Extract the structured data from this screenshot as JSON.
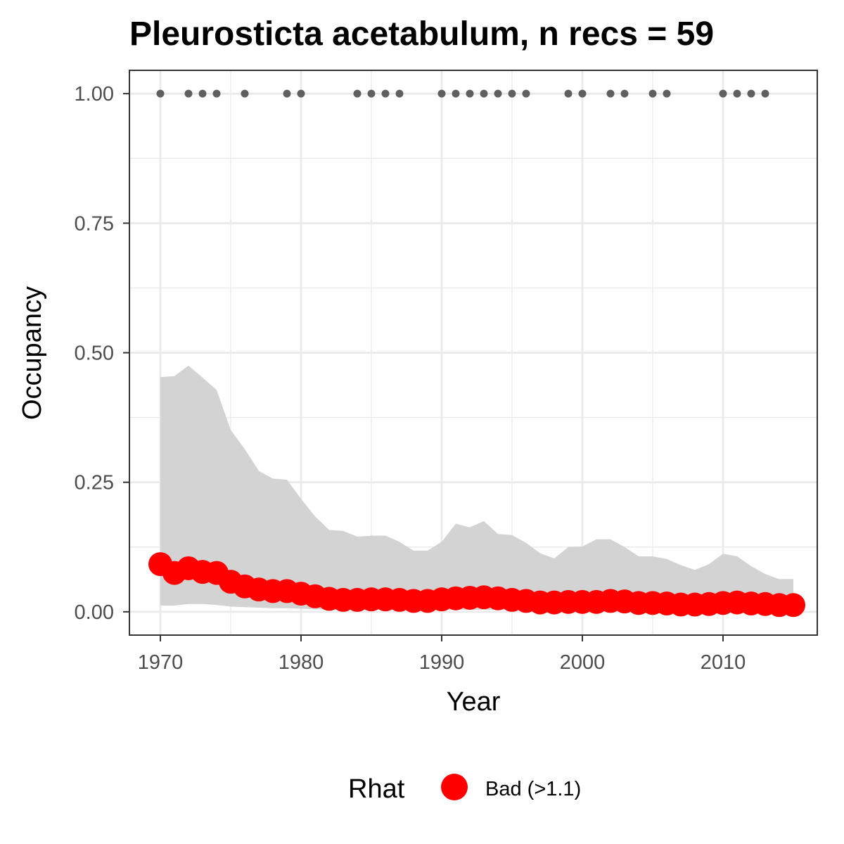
{
  "chart_data": {
    "type": "line",
    "title": "Pleurosticta acetabulum, n recs = 59",
    "xlabel": "Year",
    "ylabel": "Occupancy",
    "xlim": [
      1967.8,
      2016.7
    ],
    "ylim": [
      -0.045,
      1.045
    ],
    "x_ticks": [
      1970,
      1980,
      1990,
      2000,
      2010
    ],
    "x_tick_labels": [
      "1970",
      "1980",
      "1990",
      "2000",
      "2010"
    ],
    "y_ticks": [
      0,
      0.25,
      0.5,
      0.75,
      1.0
    ],
    "y_tick_labels": [
      "0.00",
      "0.25",
      "0.50",
      "0.75",
      "1.00"
    ],
    "grid": true,
    "years": [
      1970,
      1971,
      1972,
      1973,
      1974,
      1975,
      1976,
      1977,
      1978,
      1979,
      1980,
      1981,
      1982,
      1983,
      1984,
      1985,
      1986,
      1987,
      1988,
      1989,
      1990,
      1991,
      1992,
      1993,
      1994,
      1995,
      1996,
      1997,
      1998,
      1999,
      2000,
      2001,
      2002,
      2003,
      2004,
      2005,
      2006,
      2007,
      2008,
      2009,
      2010,
      2011,
      2012,
      2013,
      2014,
      2015
    ],
    "mean": [
      0.092,
      0.075,
      0.084,
      0.077,
      0.075,
      0.058,
      0.049,
      0.043,
      0.04,
      0.04,
      0.035,
      0.03,
      0.025,
      0.023,
      0.023,
      0.024,
      0.024,
      0.023,
      0.021,
      0.021,
      0.024,
      0.026,
      0.027,
      0.028,
      0.026,
      0.023,
      0.021,
      0.018,
      0.018,
      0.019,
      0.019,
      0.019,
      0.021,
      0.02,
      0.017,
      0.017,
      0.016,
      0.014,
      0.014,
      0.015,
      0.017,
      0.018,
      0.016,
      0.015,
      0.013,
      0.013
    ],
    "upper": [
      0.453,
      0.455,
      0.475,
      0.452,
      0.428,
      0.351,
      0.314,
      0.272,
      0.257,
      0.255,
      0.218,
      0.184,
      0.158,
      0.156,
      0.145,
      0.147,
      0.147,
      0.135,
      0.118,
      0.118,
      0.135,
      0.17,
      0.163,
      0.175,
      0.15,
      0.148,
      0.133,
      0.113,
      0.103,
      0.125,
      0.126,
      0.14,
      0.14,
      0.125,
      0.107,
      0.107,
      0.102,
      0.09,
      0.081,
      0.092,
      0.112,
      0.107,
      0.088,
      0.073,
      0.063,
      0.063
    ],
    "lower": [
      0.012,
      0.012,
      0.015,
      0.015,
      0.013,
      0.01,
      0.009,
      0.008,
      0.007,
      0.007,
      0.006,
      0.005,
      0.004,
      0.004,
      0.004,
      0.004,
      0.004,
      0.004,
      0.004,
      0.004,
      0.004,
      0.004,
      0.004,
      0.004,
      0.004,
      0.004,
      0.004,
      0.003,
      0.003,
      0.003,
      0.003,
      0.003,
      0.003,
      0.003,
      0.003,
      0.003,
      0.003,
      0.003,
      0.003,
      0.003,
      0.003,
      0.003,
      0.003,
      0.003,
      0.003,
      0.003
    ],
    "record_years": [
      1970,
      1972,
      1973,
      1974,
      1976,
      1979,
      1980,
      1984,
      1985,
      1986,
      1987,
      1990,
      1991,
      1992,
      1993,
      1994,
      1995,
      1996,
      1999,
      2000,
      2002,
      2003,
      2005,
      2006,
      2010,
      2011,
      2012,
      2013
    ],
    "record_y": 1.0,
    "legend": {
      "title": "Rhat",
      "placement": "bottom",
      "items": [
        {
          "label": "Bad (>1.1)",
          "color": "#ff0000"
        }
      ]
    },
    "colors": {
      "mean": "#ff0000",
      "ribbon": "#d3d3d3",
      "records": "#5f5f5f",
      "grid": "#ebebeb",
      "panel_border": "#333333",
      "tick_label": "#4d4d4d"
    }
  }
}
